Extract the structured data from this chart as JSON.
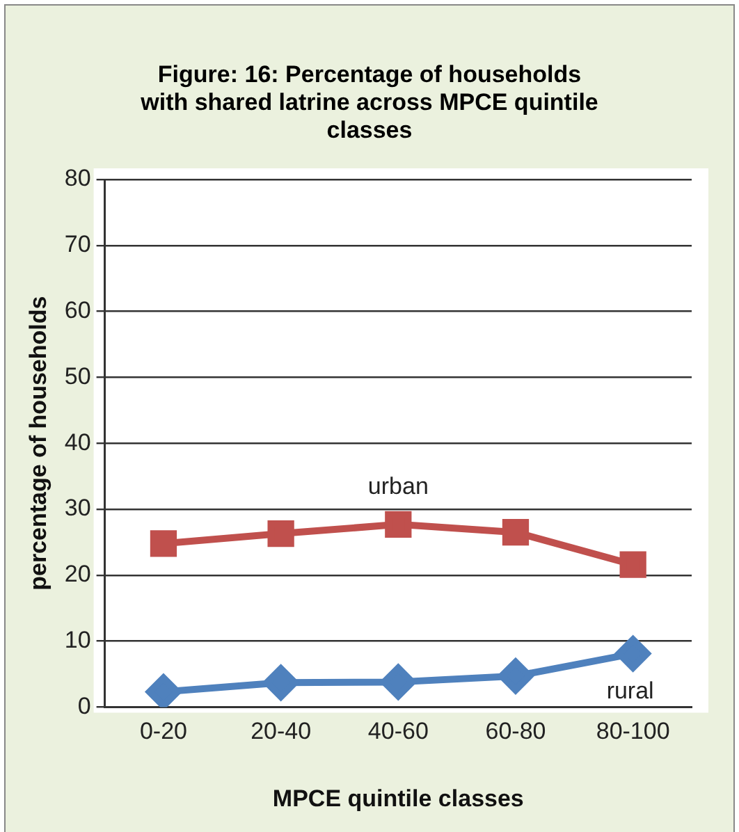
{
  "chart_data": {
    "type": "line",
    "title": "Figure: 16: Percentage of households with shared latrine across MPCE quintile classes",
    "xlabel": "MPCE quintile classes",
    "ylabel": "percentage of households",
    "categories": [
      "0-20",
      "20-40",
      "40-60",
      "60-80",
      "80-100"
    ],
    "series": [
      {
        "name": "urban",
        "color": "#c0504d",
        "marker": "square",
        "values": [
          24.8,
          26.3,
          27.7,
          26.5,
          21.6
        ]
      },
      {
        "name": "rural",
        "color": "#4f81bd",
        "marker": "diamond",
        "values": [
          2.3,
          3.7,
          3.8,
          4.7,
          8.1
        ]
      }
    ],
    "ylim": [
      0,
      80
    ],
    "yticks": [
      0,
      10,
      20,
      30,
      40,
      50,
      60,
      70,
      80
    ],
    "grid": "y",
    "legend": false
  }
}
